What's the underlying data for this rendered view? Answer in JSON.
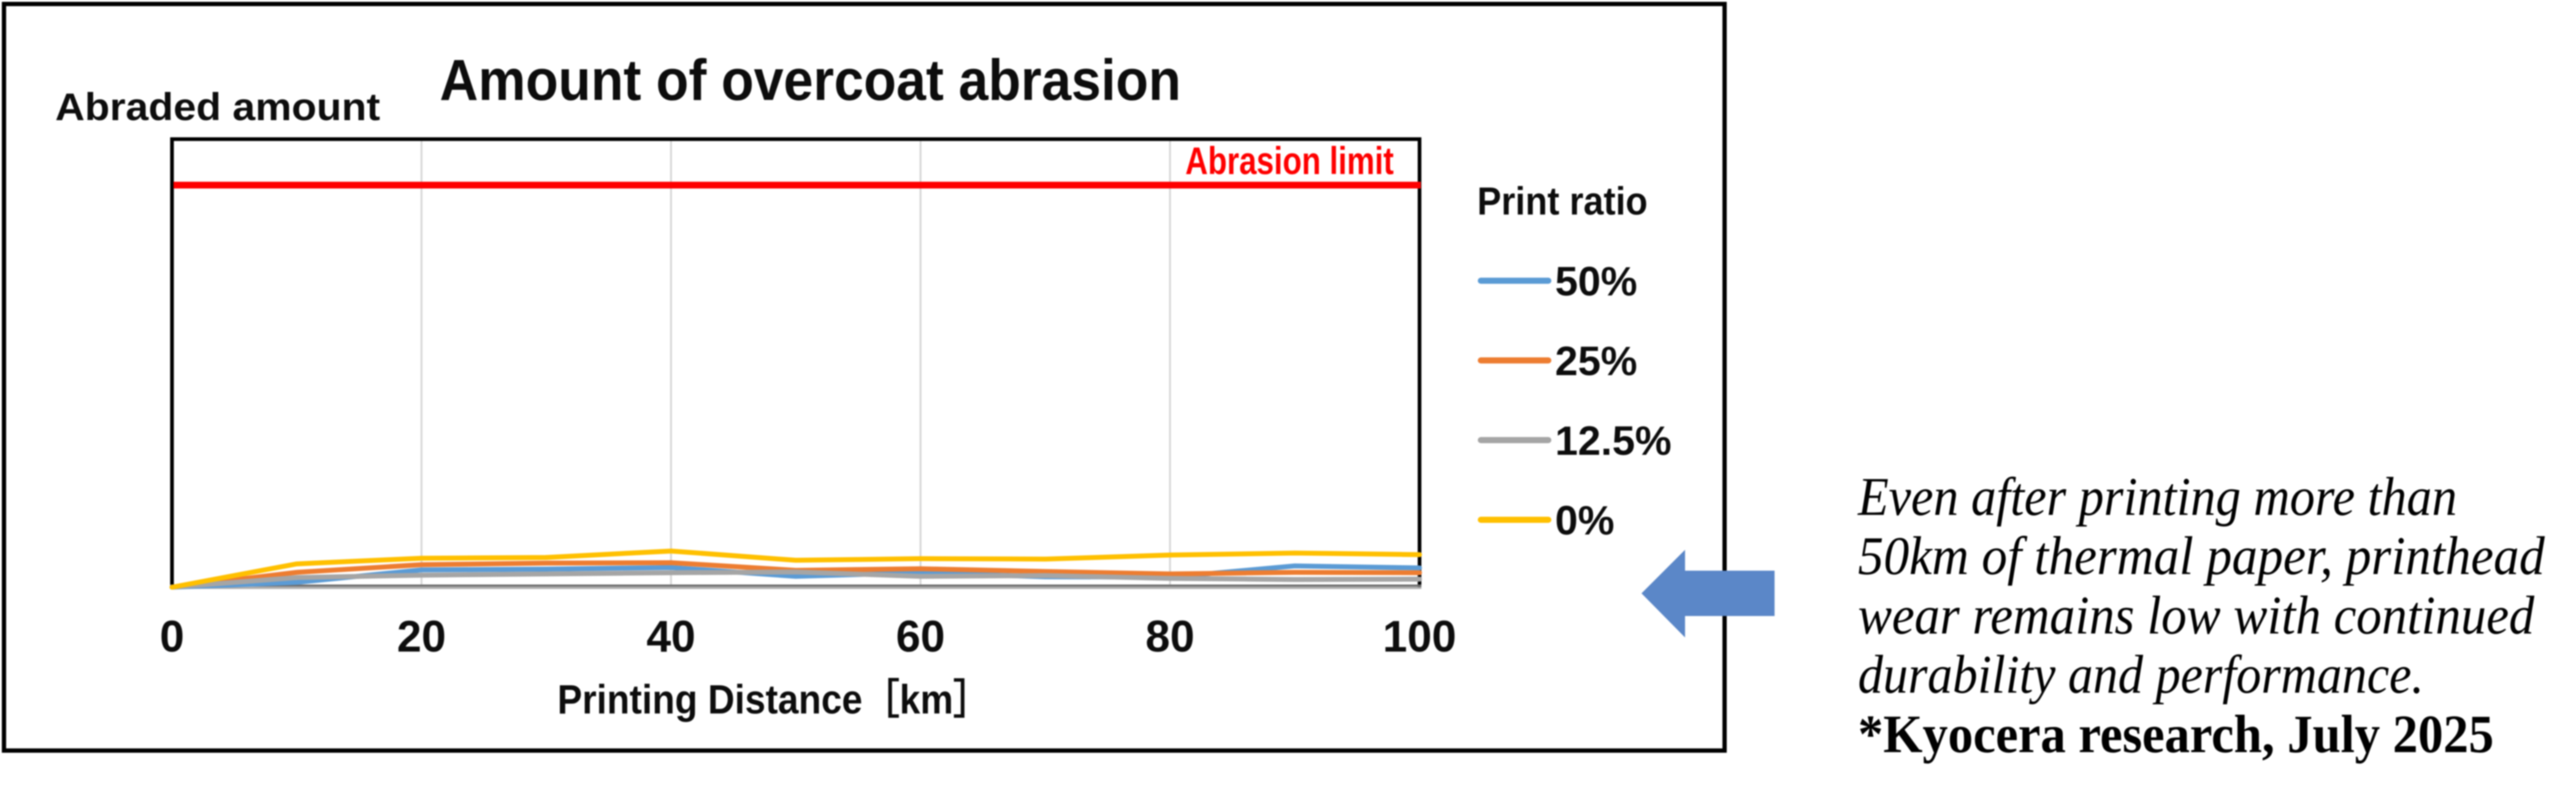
{
  "chart": {
    "title": "Amount of overcoat abrasion",
    "y_axis_label": "Abraded  amount",
    "x_axis_label": "Printing Distance［km］",
    "limit_label": "Abrasion limit",
    "legend_title": "Print ratio"
  },
  "chart_data": {
    "type": "line",
    "title": "Amount of overcoat abrasion",
    "xlabel": "Printing Distance [km]",
    "ylabel": "Abraded amount",
    "x": [
      0,
      10,
      20,
      30,
      40,
      50,
      60,
      70,
      80,
      90,
      100
    ],
    "x_ticks": [
      0,
      20,
      40,
      60,
      80,
      100
    ],
    "ylim": [
      0,
      111.4
    ],
    "grid": "vertical-only",
    "legend_position": "right",
    "abrasion_limit_value": 100,
    "abrasion_limit_color": "#fe0000",
    "units": "percent of abrasion limit",
    "series": [
      {
        "name": "50%",
        "color": "#5b9bd5",
        "values": [
          0,
          1.2,
          4.3,
          4.5,
          4.9,
          2.7,
          3.6,
          2.6,
          2.5,
          5.3,
          4.8
        ]
      },
      {
        "name": "25%",
        "color": "#ed7d31",
        "values": [
          0,
          3.7,
          5.6,
          6.0,
          6.1,
          4.2,
          4.6,
          3.9,
          3.3,
          3.7,
          3.6
        ]
      },
      {
        "name": "12.5%",
        "color": "#a5a5a5",
        "values": [
          0,
          2.4,
          3.0,
          3.3,
          3.6,
          3.8,
          2.7,
          2.9,
          2.2,
          1.9,
          2.0
        ]
      },
      {
        "name": "0%",
        "color": "#ffc000",
        "values": [
          0,
          5.8,
          7.2,
          7.4,
          9.0,
          6.7,
          7.1,
          7.0,
          8.0,
          8.5,
          8.1
        ]
      }
    ]
  },
  "annotation": {
    "lines": [
      "Even after printing more than",
      "50km of thermal paper, printhead",
      "wear remains low with continued",
      "durability and performance."
    ],
    "source_line": "*Kyocera research, July 2025"
  },
  "arrow": {
    "direction": "left",
    "color": "#5b87c8"
  }
}
